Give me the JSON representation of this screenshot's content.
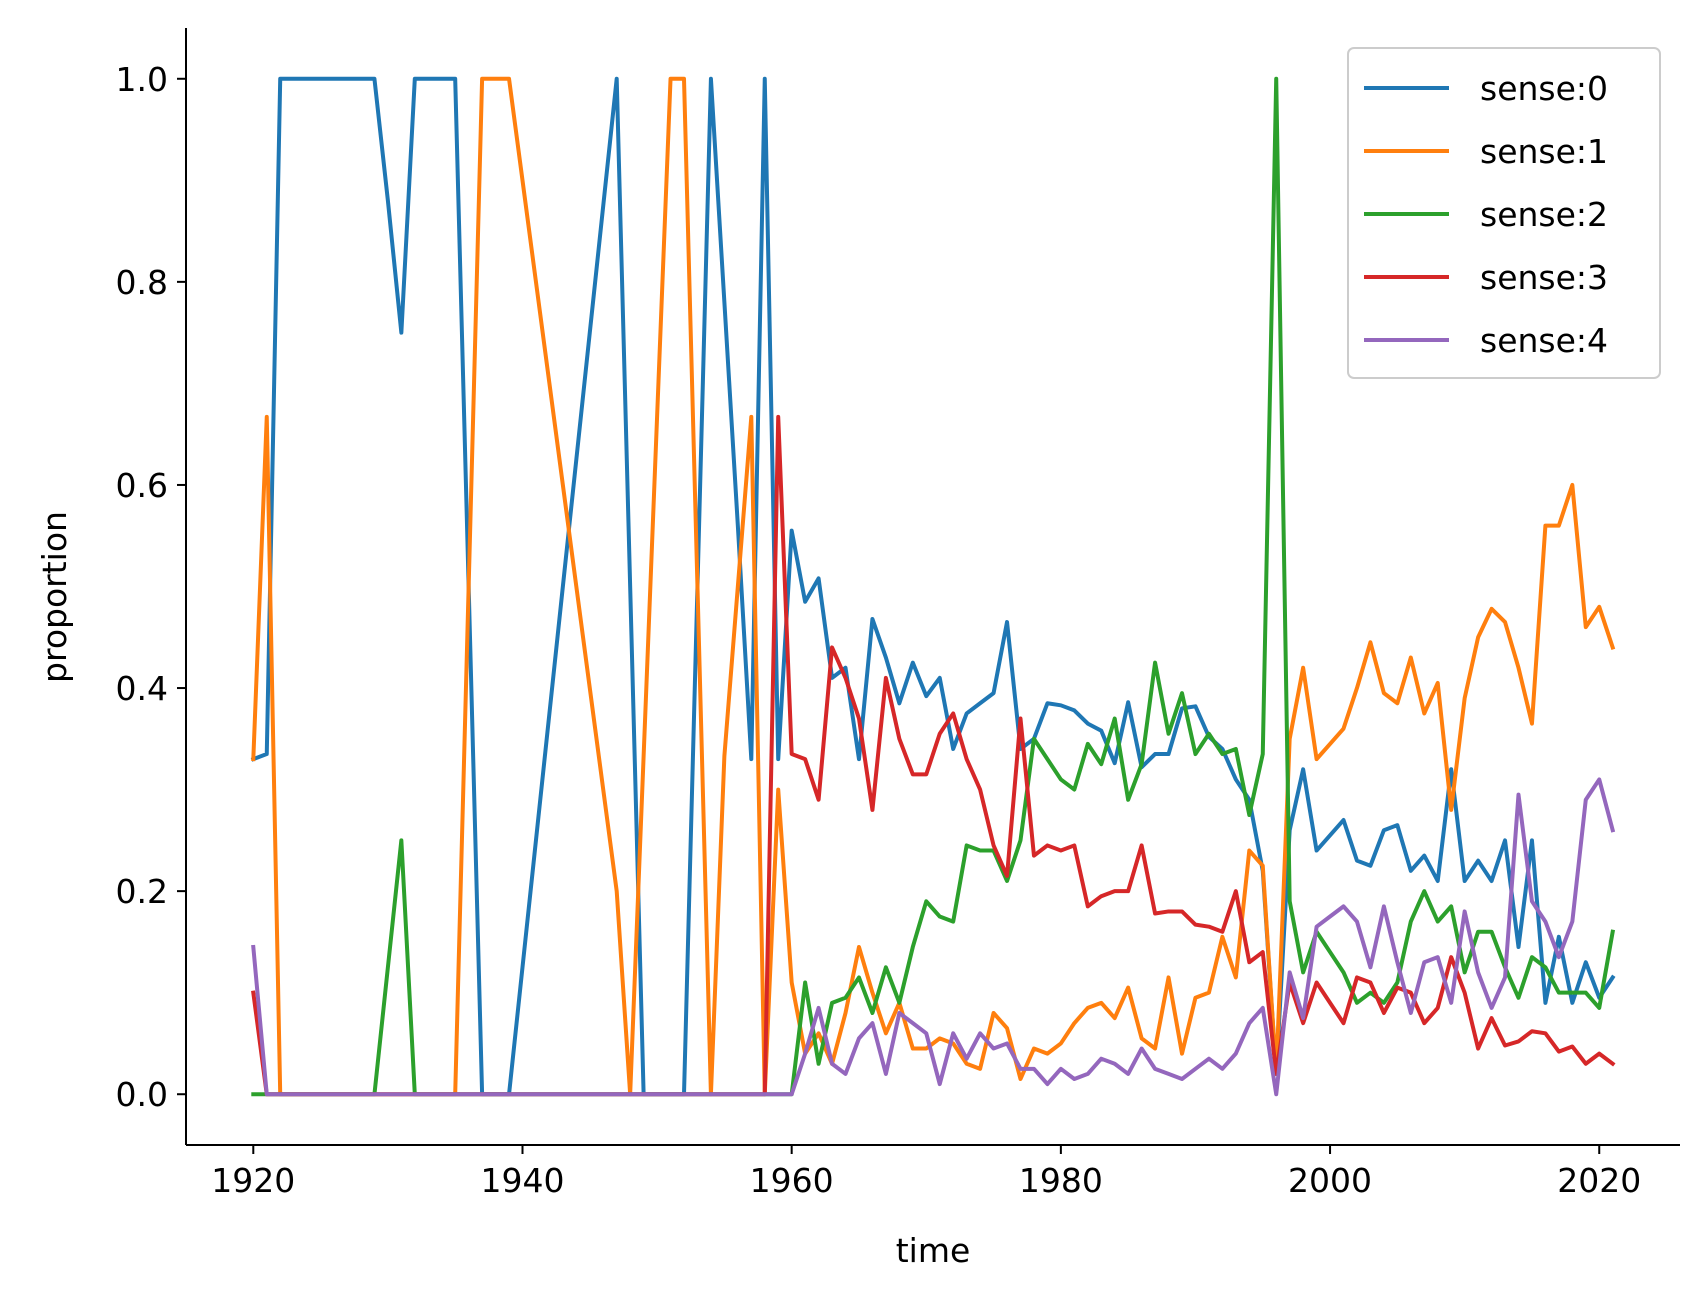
{
  "chart_data": {
    "type": "line",
    "title": "",
    "xlabel": "time",
    "ylabel": "proportion",
    "xlim": [
      1915,
      2026
    ],
    "ylim": [
      -0.05,
      1.05
    ],
    "xticks": [
      1920,
      1940,
      1960,
      1980,
      2000,
      2020
    ],
    "yticks": [
      0.0,
      0.2,
      0.4,
      0.6,
      0.8,
      1.0
    ],
    "grid": false,
    "legend_position": "top-right",
    "x": [
      1920,
      1921,
      1922,
      1923,
      1924,
      1925,
      1926,
      1927,
      1928,
      1929,
      1930,
      1931,
      1932,
      1933,
      1934,
      1935,
      1936,
      1937,
      1938,
      1939,
      1940,
      1941,
      1942,
      1943,
      1944,
      1945,
      1946,
      1947,
      1948,
      1949,
      1950,
      1951,
      1952,
      1953,
      1954,
      1955,
      1956,
      1957,
      1958,
      1959,
      1960,
      1961,
      1962,
      1963,
      1964,
      1965,
      1966,
      1967,
      1968,
      1969,
      1970,
      1971,
      1972,
      1973,
      1974,
      1975,
      1976,
      1977,
      1978,
      1979,
      1980,
      1981,
      1982,
      1983,
      1984,
      1985,
      1986,
      1987,
      1988,
      1989,
      1990,
      1991,
      1992,
      1993,
      1994,
      1995,
      1996,
      1997,
      1998,
      1999,
      2000,
      2001,
      2002,
      2003,
      2004,
      2005,
      2006,
      2007,
      2008,
      2009,
      2010,
      2011,
      2012,
      2013,
      2014,
      2015,
      2016,
      2017,
      2018,
      2019,
      2020,
      2021
    ],
    "series": [
      {
        "name": "sense:0",
        "color": "#1f77b4",
        "values": [
          0.33,
          0.335,
          1.0,
          1.0,
          1.0,
          1.0,
          1.0,
          1.0,
          1.0,
          1.0,
          0.88,
          0.75,
          1.0,
          1.0,
          1.0,
          1.0,
          0.5,
          0.0,
          0.0,
          0.0,
          0.125,
          0.25,
          0.375,
          0.5,
          0.625,
          0.75,
          0.875,
          1.0,
          0.5,
          0.0,
          0.0,
          0.0,
          0.0,
          0.5,
          1.0,
          0.78,
          0.56,
          0.33,
          1.0,
          0.33,
          0.555,
          0.485,
          0.508,
          0.41,
          0.42,
          0.33,
          0.468,
          0.43,
          0.385,
          0.425,
          0.392,
          0.41,
          0.34,
          0.375,
          0.385,
          0.395,
          0.465,
          0.34,
          0.35,
          0.385,
          0.383,
          0.378,
          0.365,
          0.358,
          0.326,
          0.386,
          0.322,
          0.335,
          0.335,
          0.38,
          0.382,
          0.352,
          0.34,
          0.31,
          0.29,
          0.22,
          0.02,
          0.26,
          0.32,
          0.24,
          0.255,
          0.27,
          0.23,
          0.225,
          0.26,
          0.265,
          0.22,
          0.235,
          0.21,
          0.32,
          0.21,
          0.23,
          0.21,
          0.25,
          0.145,
          0.25,
          0.09,
          0.155,
          0.09,
          0.13,
          0.095,
          0.115
        ]
      },
      {
        "name": "sense:1",
        "color": "#ff7f0e",
        "values": [
          0.33,
          0.667,
          0.0,
          0.0,
          0.0,
          0.0,
          0.0,
          0.0,
          0.0,
          0.0,
          0.0,
          0.0,
          0.0,
          0.0,
          0.0,
          0.0,
          0.5,
          1.0,
          1.0,
          1.0,
          0.9,
          0.8,
          0.7,
          0.6,
          0.5,
          0.4,
          0.3,
          0.2,
          0.0,
          0.333,
          0.667,
          1.0,
          1.0,
          0.5,
          0.0,
          0.333,
          0.5,
          0.667,
          0.0,
          0.3,
          0.11,
          0.04,
          0.06,
          0.03,
          0.08,
          0.145,
          0.1,
          0.06,
          0.09,
          0.045,
          0.045,
          0.055,
          0.05,
          0.03,
          0.025,
          0.08,
          0.065,
          0.015,
          0.045,
          0.04,
          0.05,
          0.07,
          0.085,
          0.09,
          0.075,
          0.105,
          0.055,
          0.045,
          0.115,
          0.04,
          0.095,
          0.1,
          0.155,
          0.115,
          0.24,
          0.225,
          0.02,
          0.35,
          0.42,
          0.33,
          0.345,
          0.36,
          0.4,
          0.445,
          0.395,
          0.385,
          0.43,
          0.375,
          0.405,
          0.28,
          0.39,
          0.45,
          0.478,
          0.465,
          0.42,
          0.365,
          0.56,
          0.56,
          0.6,
          0.46,
          0.48,
          0.44
        ]
      },
      {
        "name": "sense:2",
        "color": "#2ca02c",
        "values": [
          0.0,
          0.0,
          0.0,
          0.0,
          0.0,
          0.0,
          0.0,
          0.0,
          0.0,
          0.0,
          0.125,
          0.25,
          0.0,
          0.0,
          0.0,
          0.0,
          0.0,
          0.0,
          0.0,
          0.0,
          0.0,
          0.0,
          0.0,
          0.0,
          0.0,
          0.0,
          0.0,
          0.0,
          0.0,
          0.0,
          0.0,
          0.0,
          0.0,
          0.0,
          0.0,
          0.0,
          0.0,
          0.0,
          0.0,
          0.0,
          0.0,
          0.11,
          0.03,
          0.09,
          0.095,
          0.115,
          0.08,
          0.125,
          0.09,
          0.145,
          0.19,
          0.175,
          0.17,
          0.245,
          0.24,
          0.24,
          0.21,
          0.25,
          0.35,
          0.33,
          0.31,
          0.3,
          0.345,
          0.325,
          0.37,
          0.29,
          0.325,
          0.425,
          0.355,
          0.395,
          0.335,
          0.355,
          0.335,
          0.34,
          0.275,
          0.335,
          1.0,
          0.19,
          0.12,
          0.16,
          0.14,
          0.12,
          0.09,
          0.1,
          0.09,
          0.11,
          0.17,
          0.2,
          0.17,
          0.185,
          0.12,
          0.16,
          0.16,
          0.125,
          0.095,
          0.135,
          0.125,
          0.1,
          0.1,
          0.1,
          0.085,
          0.16
        ]
      },
      {
        "name": "sense:3",
        "color": "#d62728",
        "values": [
          0.1,
          0.0,
          0.0,
          0.0,
          0.0,
          0.0,
          0.0,
          0.0,
          0.0,
          0.0,
          0.0,
          0.0,
          0.0,
          0.0,
          0.0,
          0.0,
          0.0,
          0.0,
          0.0,
          0.0,
          0.0,
          0.0,
          0.0,
          0.0,
          0.0,
          0.0,
          0.0,
          0.0,
          0.0,
          0.0,
          0.0,
          0.0,
          0.0,
          0.0,
          0.0,
          0.0,
          0.0,
          0.0,
          0.0,
          0.667,
          0.335,
          0.33,
          0.29,
          0.44,
          0.41,
          0.37,
          0.28,
          0.41,
          0.35,
          0.315,
          0.315,
          0.355,
          0.375,
          0.33,
          0.3,
          0.245,
          0.215,
          0.37,
          0.235,
          0.245,
          0.24,
          0.245,
          0.185,
          0.195,
          0.2,
          0.2,
          0.245,
          0.178,
          0.18,
          0.18,
          0.167,
          0.165,
          0.16,
          0.2,
          0.13,
          0.14,
          0.02,
          0.11,
          0.07,
          0.11,
          0.09,
          0.07,
          0.115,
          0.11,
          0.08,
          0.105,
          0.1,
          0.07,
          0.085,
          0.135,
          0.1,
          0.045,
          0.075,
          0.048,
          0.052,
          0.062,
          0.06,
          0.042,
          0.047,
          0.03,
          0.04,
          0.03
        ]
      },
      {
        "name": "sense:4",
        "color": "#9467bd",
        "values": [
          0.145,
          0.0,
          0.0,
          0.0,
          0.0,
          0.0,
          0.0,
          0.0,
          0.0,
          0.0,
          0.0,
          0.0,
          0.0,
          0.0,
          0.0,
          0.0,
          0.0,
          0.0,
          0.0,
          0.0,
          0.0,
          0.0,
          0.0,
          0.0,
          0.0,
          0.0,
          0.0,
          0.0,
          0.0,
          0.0,
          0.0,
          0.0,
          0.0,
          0.0,
          0.0,
          0.0,
          0.0,
          0.0,
          0.0,
          0.0,
          0.0,
          0.04,
          0.085,
          0.03,
          0.02,
          0.055,
          0.07,
          0.02,
          0.08,
          0.07,
          0.06,
          0.01,
          0.06,
          0.035,
          0.06,
          0.045,
          0.05,
          0.025,
          0.025,
          0.01,
          0.025,
          0.015,
          0.02,
          0.035,
          0.03,
          0.02,
          0.045,
          0.025,
          0.02,
          0.015,
          0.025,
          0.035,
          0.025,
          0.04,
          0.07,
          0.085,
          0.0,
          0.12,
          0.075,
          0.165,
          0.175,
          0.185,
          0.17,
          0.125,
          0.185,
          0.13,
          0.08,
          0.13,
          0.135,
          0.09,
          0.18,
          0.12,
          0.085,
          0.115,
          0.295,
          0.19,
          0.17,
          0.135,
          0.17,
          0.29,
          0.31,
          0.26
        ]
      }
    ]
  }
}
